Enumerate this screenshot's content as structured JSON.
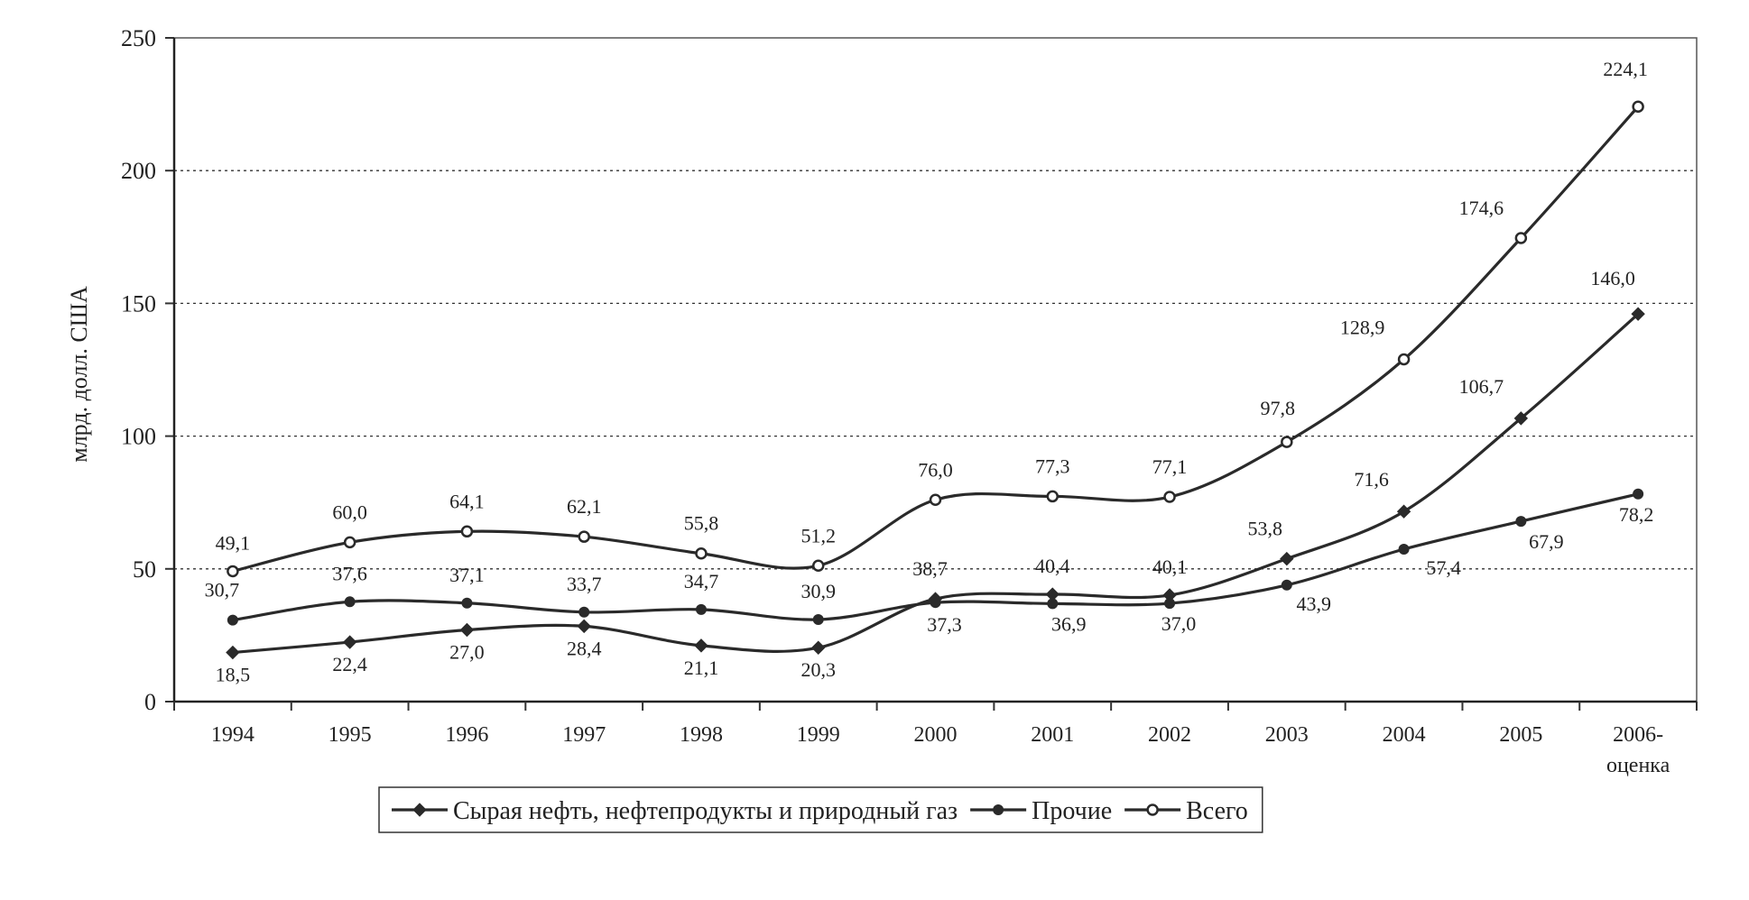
{
  "chart_data": {
    "type": "line",
    "ylabel": "млрд. долл. США",
    "ylim": [
      0,
      250
    ],
    "yticks": [
      0,
      50,
      100,
      150,
      200,
      250
    ],
    "categories": [
      "1994",
      "1995",
      "1996",
      "1997",
      "1998",
      "1999",
      "2000",
      "2001",
      "2002",
      "2003",
      "2004",
      "2005",
      "2006-оценка"
    ],
    "category_lines": [
      [
        "1994"
      ],
      [
        "1995"
      ],
      [
        "1996"
      ],
      [
        "1997"
      ],
      [
        "1998"
      ],
      [
        "1999"
      ],
      [
        "2000"
      ],
      [
        "2001"
      ],
      [
        "2002"
      ],
      [
        "2003"
      ],
      [
        "2004"
      ],
      [
        "2005"
      ],
      [
        "2006-",
        "оценка"
      ]
    ],
    "grid": "horizontal dotted",
    "legend_position": "bottom",
    "series": [
      {
        "name": "Сырая нефть, нефтепродукты и природный газ",
        "values": [
          18.5,
          22.4,
          27.0,
          28.4,
          21.1,
          20.3,
          38.7,
          40.4,
          40.1,
          53.8,
          71.6,
          106.7,
          146.0
        ],
        "labels": [
          "18,5",
          "22,4",
          "27,0",
          "28,4",
          "21,1",
          "20,3",
          "38,7",
          "40,4",
          "40,1",
          "53,8",
          "71,6",
          "106,7",
          "146,0"
        ],
        "marker": "diamond",
        "color": "#2a2a2a"
      },
      {
        "name": "Прочие",
        "values": [
          30.7,
          37.6,
          37.1,
          33.7,
          34.7,
          30.9,
          37.3,
          36.9,
          37.0,
          43.9,
          57.4,
          67.9,
          78.2
        ],
        "labels": [
          "30,7",
          "37,6",
          "37,1",
          "33,7",
          "34,7",
          "30,9",
          "37,3",
          "36,9",
          "37,0",
          "43,9",
          "57,4",
          "67,9",
          "78,2"
        ],
        "marker": "circle",
        "color": "#2a2a2a"
      },
      {
        "name": "Всего",
        "values": [
          49.1,
          60.0,
          64.1,
          62.1,
          55.8,
          51.2,
          76.0,
          77.3,
          77.1,
          97.8,
          128.9,
          174.6,
          224.1
        ],
        "labels": [
          "49,1",
          "60,0",
          "64,1",
          "62,1",
          "55,8",
          "51,2",
          "76,0",
          "77,3",
          "77,1",
          "97,8",
          "128,9",
          "174,6",
          "224,1"
        ],
        "marker": "open-circle",
        "color": "#2a2a2a"
      }
    ]
  }
}
